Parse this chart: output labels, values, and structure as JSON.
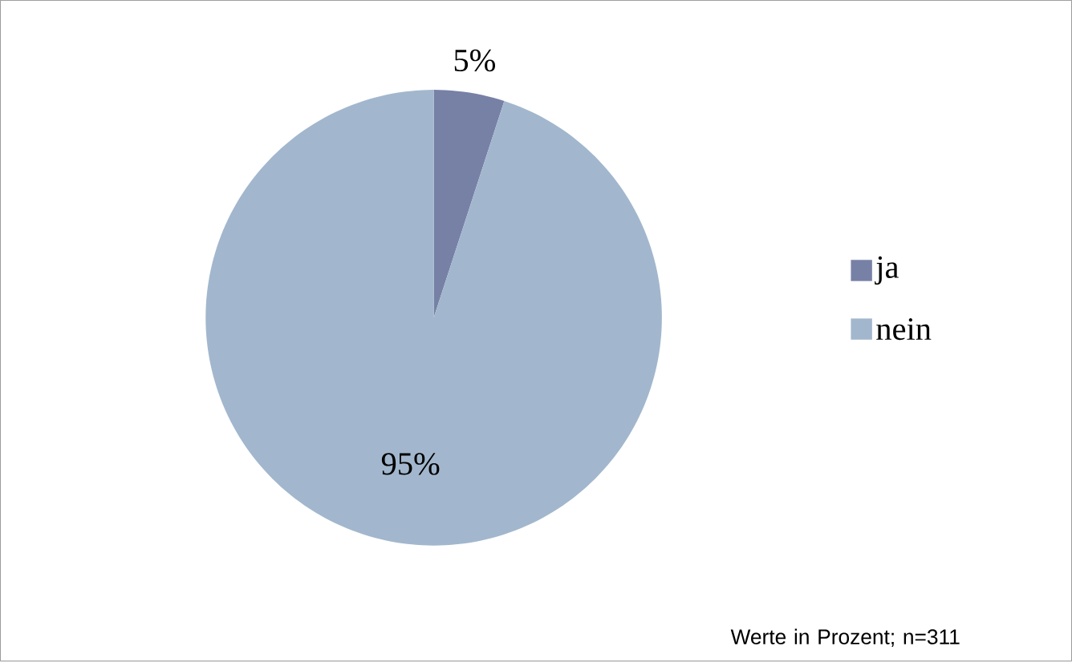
{
  "chart_data": {
    "type": "pie",
    "categories": [
      "ja",
      "nein"
    ],
    "values": [
      5,
      95
    ],
    "value_labels": [
      "5%",
      "95%"
    ],
    "colors": [
      "#7781a6",
      "#a2b7cd"
    ],
    "legend": "right",
    "annotations": [
      "Werte in Prozent; n=311"
    ]
  }
}
